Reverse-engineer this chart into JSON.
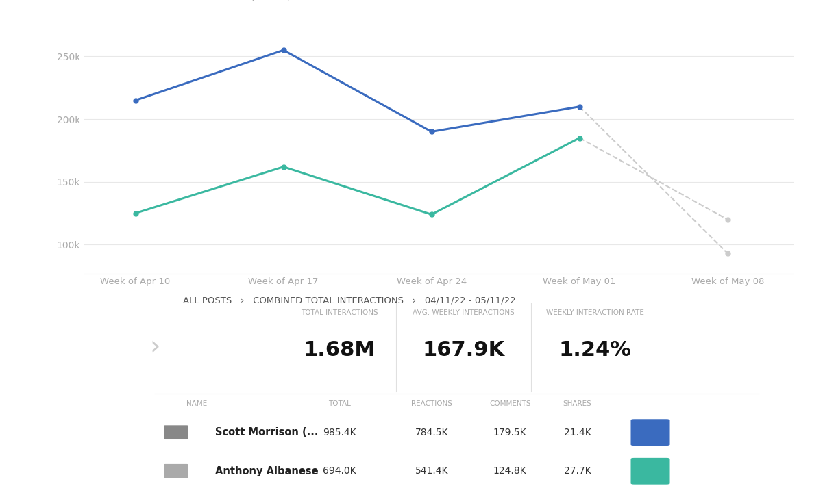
{
  "x_labels": [
    "Week of Apr 10",
    "Week of Apr 17",
    "Week of Apr 24",
    "Week of May 01",
    "Week of May 08"
  ],
  "x_values": [
    0,
    1,
    2,
    3,
    4
  ],
  "scomo_values": [
    215000,
    255000,
    190000,
    210000,
    null
  ],
  "scomo_dashed": [
    210000,
    93000
  ],
  "albanese_values": [
    125000,
    162000,
    124000,
    185000,
    null
  ],
  "albanese_dashed": [
    185000,
    120000
  ],
  "scomo_color": "#3a6bbf",
  "albanese_color": "#3ab8a0",
  "dashed_color": "#cccccc",
  "ylim_min": 80000,
  "ylim_max": 275000,
  "yticks": [
    100000,
    150000,
    200000,
    250000
  ],
  "ytick_labels": [
    "100k",
    "150k",
    "200k",
    "250k"
  ],
  "legend_scomo": "Scott Morrison (ScoMo)",
  "legend_albanese": "Anthony Albanese",
  "background_color": "#ffffff",
  "grid_color": "#e8e8e8",
  "label_color": "#aaaaaa",
  "stats_title": "ALL POSTS   ›   COMBINED TOTAL INTERACTIONS   ›   04/11/22 - 05/11/22",
  "total_interactions": "1.68M",
  "avg_weekly": "167.9K",
  "weekly_rate": "1.24%",
  "col_name": "NAME",
  "col_total": "TOTAL",
  "col_reactions": "REACTIONS",
  "col_comments": "COMMENTS",
  "col_shares": "SHARES",
  "row1_name": "Scott Morrison (...",
  "row1_total": "985.4K",
  "row1_reactions": "784.5K",
  "row1_comments": "179.5K",
  "row1_shares": "21.4K",
  "row2_name": "Anthony Albanese",
  "row2_total": "694.0K",
  "row2_reactions": "541.4K",
  "row2_comments": "124.8K",
  "row2_shares": "27.7K"
}
